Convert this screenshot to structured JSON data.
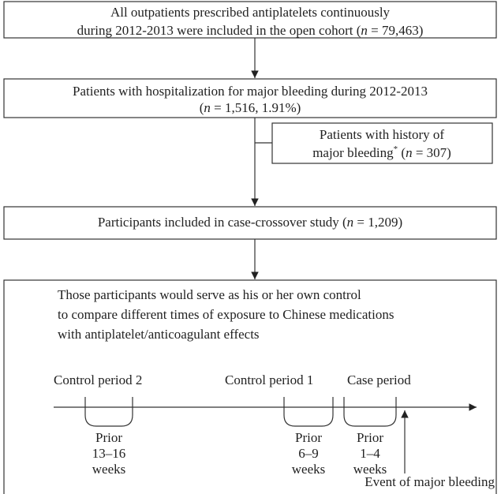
{
  "boxes": [
    {
      "lines": [
        [
          {
            "text": "All outpatients prescribed antiplatelets continuously"
          }
        ],
        [
          {
            "text": "during 2012-2013 were included in the open cohort ("
          },
          {
            "text": "n",
            "style": "italic"
          },
          {
            "text": " = 79,463)"
          }
        ]
      ]
    },
    {
      "lines": [
        [
          {
            "text": "Patients with hospitalization for major bleeding during 2012-2013"
          }
        ],
        [
          {
            "text": "("
          },
          {
            "text": "n",
            "style": "italic"
          },
          {
            "text": " = 1,516, 1.91%)"
          }
        ]
      ]
    },
    {
      "lines": [
        [
          {
            "text": "Patients with history of"
          }
        ],
        [
          {
            "text": "major bleeding"
          },
          {
            "text": "*",
            "style": "sup"
          },
          {
            "text": " ("
          },
          {
            "text": "n",
            "style": "italic"
          },
          {
            "text": " = 307)"
          }
        ]
      ]
    },
    {
      "lines": [
        [
          {
            "text": "Participants included in case-crossover study ("
          },
          {
            "text": "n",
            "style": "italic"
          },
          {
            "text": " = 1,209)"
          }
        ]
      ]
    },
    {
      "lines": [
        [
          {
            "text": "Those participants would serve as his or her own control"
          }
        ],
        [
          {
            "text": "to compare different times of exposure to Chinese medications"
          }
        ],
        [
          {
            "text": "with antiplatelet/anticoagulant effects"
          }
        ]
      ]
    }
  ],
  "timeline": {
    "periods": [
      {
        "label": "Control period 2",
        "window": [
          "Prior",
          "13–16",
          "weeks"
        ]
      },
      {
        "label": "Control period 1",
        "window": [
          "Prior",
          "6–9",
          "weeks"
        ]
      },
      {
        "label": "Case period",
        "window": [
          "Prior",
          "1–4",
          "weeks"
        ]
      }
    ],
    "event": "Event of major bleeding"
  }
}
